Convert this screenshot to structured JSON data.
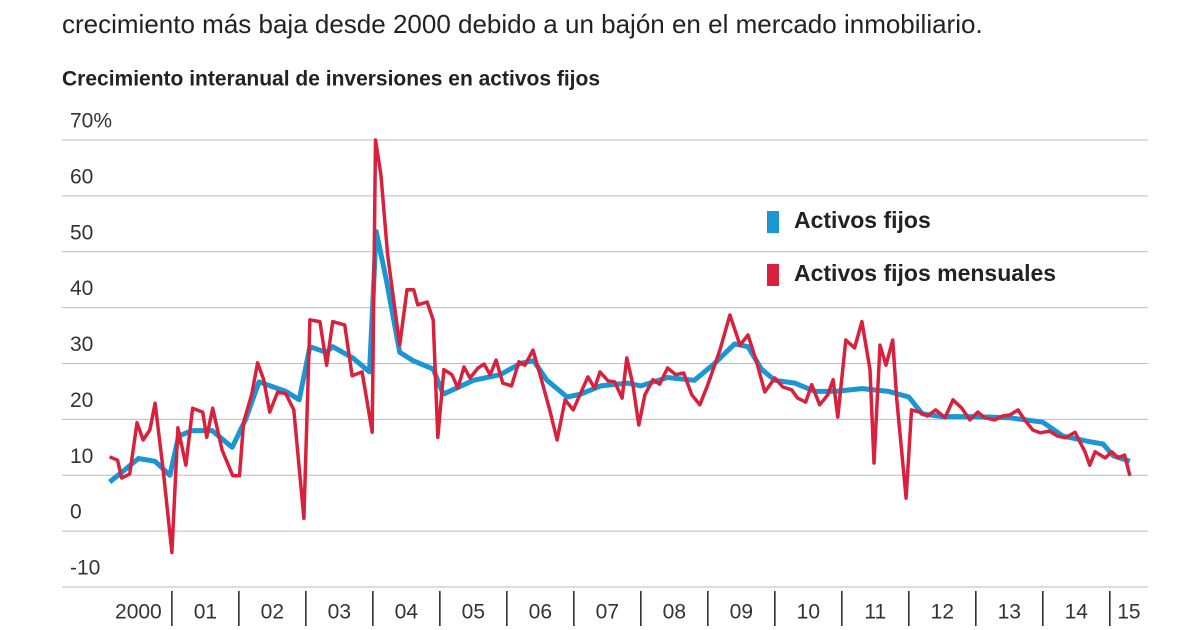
{
  "subtitle": "crecimiento más baja desde 2000 debido a un bajón en el mercado inmobiliario.",
  "chart_data": {
    "type": "line",
    "title": "Crecimiento interanual de inversiones en activos fijos",
    "xlim": [
      1999.36,
      2015.57
    ],
    "ylim": [
      -10,
      70
    ],
    "yticks": [
      -10,
      0,
      10,
      20,
      30,
      40,
      50,
      60,
      {
        "value": 70,
        "label": "70%"
      }
    ],
    "xticks": [
      {
        "value": 2000,
        "label": "2000"
      },
      {
        "value": 2001,
        "label": "01"
      },
      {
        "value": 2002,
        "label": "02"
      },
      {
        "value": 2003,
        "label": "03"
      },
      {
        "value": 2004,
        "label": "04"
      },
      {
        "value": 2005,
        "label": "05"
      },
      {
        "value": 2006,
        "label": "06"
      },
      {
        "value": 2007,
        "label": "07"
      },
      {
        "value": 2008,
        "label": "08"
      },
      {
        "value": 2009,
        "label": "09"
      },
      {
        "value": 2010,
        "label": "10"
      },
      {
        "value": 2011,
        "label": "11"
      },
      {
        "value": 2012,
        "label": "12"
      },
      {
        "value": 2013,
        "label": "13"
      },
      {
        "value": 2014,
        "label": "14"
      },
      {
        "value": 2015,
        "label": "15"
      }
    ],
    "grid": true,
    "series": [
      {
        "name": "Activos fijos",
        "color": "#1a96d4",
        "x": [
          2000.07,
          2000.25,
          2000.5,
          2000.75,
          2000.97,
          2001.1,
          2001.3,
          2001.6,
          2001.9,
          2002.1,
          2002.3,
          2002.7,
          2002.9,
          2003.06,
          2003.3,
          2003.4,
          2003.7,
          2003.95,
          2004.05,
          2004.2,
          2004.4,
          2004.6,
          2004.9,
          2005.05,
          2005.5,
          2005.9,
          2006.2,
          2006.4,
          2006.6,
          2006.9,
          2007.1,
          2007.4,
          2007.8,
          2008.0,
          2008.4,
          2008.8,
          2009.1,
          2009.4,
          2009.6,
          2009.8,
          2010.0,
          2010.3,
          2010.6,
          2010.9,
          2011.3,
          2011.7,
          2012.0,
          2012.2,
          2012.5,
          2013.0,
          2013.5,
          2014.0,
          2014.3,
          2014.7,
          2014.9,
          2015.05,
          2015.3
        ],
        "values": [
          8.8,
          10.5,
          13,
          12.5,
          10,
          17,
          18,
          18,
          15,
          20,
          26.7,
          25,
          23.5,
          33,
          32,
          33,
          31,
          28.5,
          53.6,
          45,
          32,
          30.5,
          29,
          24.5,
          27,
          28,
          30,
          30.5,
          27,
          24,
          24.5,
          26,
          26.5,
          26,
          27.5,
          27,
          30,
          33.5,
          33,
          29,
          27,
          26.5,
          25,
          25,
          25.5,
          25,
          24,
          21,
          20.5,
          20.5,
          20.3,
          19.5,
          17,
          16,
          15.6,
          13.5,
          12.5
        ]
      },
      {
        "name": "Activos fijos mensuales",
        "color": "#d8213c",
        "x": [
          2000.07,
          2000.19,
          2000.25,
          2000.37,
          2000.48,
          2000.57,
          2000.67,
          2000.75,
          2000.87,
          2001.0,
          2001.09,
          2001.21,
          2001.31,
          2001.46,
          2001.52,
          2001.61,
          2001.75,
          2001.91,
          2002.01,
          2002.07,
          2002.19,
          2002.28,
          2002.37,
          2002.46,
          2002.58,
          2002.7,
          2002.82,
          2002.97,
          2003.06,
          2003.21,
          2003.31,
          2003.4,
          2003.58,
          2003.69,
          2003.84,
          2003.99,
          2004.04,
          2004.12,
          2004.22,
          2004.4,
          2004.51,
          2004.61,
          2004.67,
          2004.81,
          2004.9,
          2004.97,
          2005.06,
          2005.18,
          2005.27,
          2005.36,
          2005.45,
          2005.57,
          2005.66,
          2005.75,
          2005.84,
          2005.94,
          2006.07,
          2006.18,
          2006.27,
          2006.39,
          2006.51,
          2006.64,
          2006.75,
          2006.87,
          2006.99,
          2007.09,
          2007.21,
          2007.31,
          2007.39,
          2007.51,
          2007.61,
          2007.72,
          2007.79,
          2007.88,
          2007.97,
          2008.06,
          2008.18,
          2008.28,
          2008.4,
          2008.52,
          2008.64,
          2008.76,
          2008.88,
          2009.0,
          2009.18,
          2009.33,
          2009.48,
          2009.6,
          2009.72,
          2009.85,
          2010.0,
          2010.12,
          2010.25,
          2010.34,
          2010.46,
          2010.55,
          2010.67,
          2010.79,
          2010.87,
          2010.94,
          2011.06,
          2011.19,
          2011.3,
          2011.42,
          2011.48,
          2011.57,
          2011.66,
          2011.76,
          2011.82,
          2011.96,
          2012.04,
          2012.16,
          2012.28,
          2012.4,
          2012.54,
          2012.66,
          2012.79,
          2012.91,
          2013.03,
          2013.13,
          2013.28,
          2013.4,
          2013.51,
          2013.63,
          2013.73,
          2013.85,
          2013.96,
          2014.1,
          2014.22,
          2014.34,
          2014.48,
          2014.63,
          2014.7,
          2014.78,
          2014.93,
          2015.03,
          2015.12,
          2015.22,
          2015.3
        ],
        "values": [
          13.3,
          12.7,
          9.5,
          10.2,
          19.4,
          16.3,
          18.1,
          22.9,
          10.9,
          -3.8,
          18.5,
          11.8,
          22.0,
          21.3,
          16.8,
          22.0,
          14.5,
          9.9,
          9.9,
          19.5,
          24.4,
          30.1,
          27.1,
          21.3,
          24.9,
          24.6,
          21.7,
          2.3,
          37.8,
          37.5,
          29.7,
          37.5,
          36.9,
          27.8,
          28.5,
          17.7,
          70,
          63.8,
          49.5,
          33.3,
          43.2,
          43.2,
          40.5,
          41.0,
          37.8,
          16.8,
          28.9,
          28.0,
          25.6,
          29.4,
          27.4,
          29.2,
          29.9,
          28.0,
          30.6,
          26.5,
          26.0,
          30.3,
          29.7,
          32.4,
          27.4,
          21.7,
          16.3,
          23.5,
          21.7,
          24.4,
          27.6,
          25.6,
          28.5,
          26.9,
          26.7,
          23.8,
          31.0,
          26.3,
          19.0,
          24.4,
          27.1,
          26.3,
          29.2,
          28.0,
          28.3,
          24.4,
          22.6,
          26.2,
          32.4,
          38.7,
          33.3,
          35.1,
          30.6,
          24.9,
          27.4,
          25.8,
          25.3,
          23.8,
          23.1,
          26.2,
          22.6,
          24.4,
          27.1,
          20.4,
          34.2,
          32.8,
          37.5,
          28.9,
          12.2,
          33.3,
          29.7,
          34.2,
          23.5,
          5.9,
          21.7,
          21.3,
          20.6,
          21.7,
          20.3,
          23.5,
          22.0,
          19.9,
          21.3,
          20.3,
          19.9,
          20.6,
          20.8,
          21.7,
          19.9,
          18.1,
          17.6,
          17.9,
          17.0,
          16.7,
          17.7,
          14.2,
          11.8,
          14.2,
          13.1,
          14.2,
          13.1,
          13.6,
          9.9
        ]
      }
    ]
  }
}
